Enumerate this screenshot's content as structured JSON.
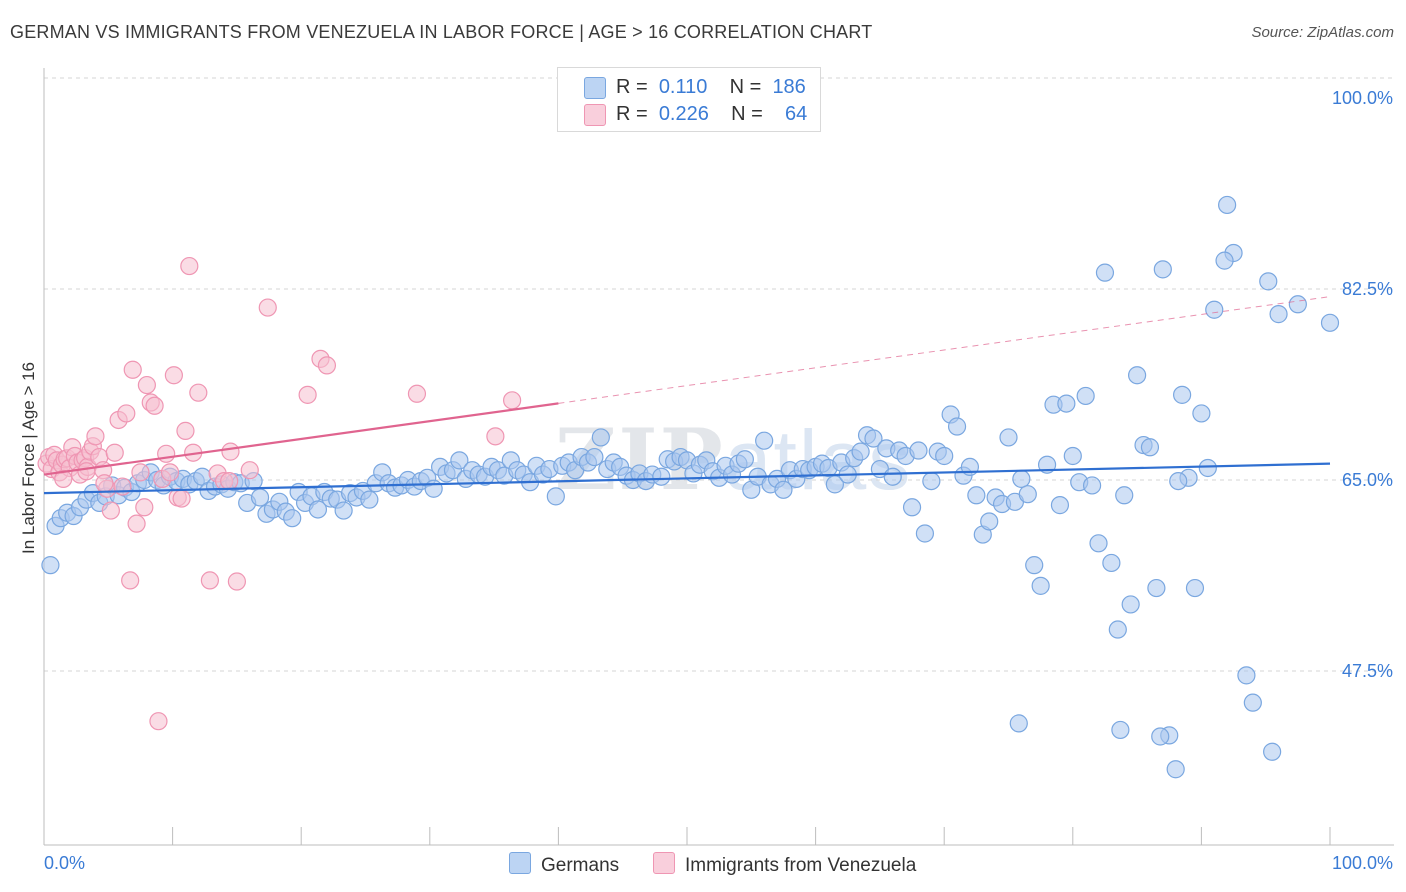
{
  "title": "GERMAN VS IMMIGRANTS FROM VENEZUELA IN LABOR FORCE | AGE > 16 CORRELATION CHART",
  "source": "Source: ZipAtlas.com",
  "watermark": {
    "zip": "ZIP",
    "atlas": "atlas"
  },
  "legend": {
    "series1": {
      "r_label": "R =",
      "r_value": "0.110",
      "n_label": "N =",
      "n_value": "186"
    },
    "series2": {
      "r_label": "R =",
      "r_value": "0.226",
      "n_label": "N =",
      "n_value": "64"
    }
  },
  "bottom_legend": {
    "series1": "Germans",
    "series2": "Immigrants from Venezuela"
  },
  "colors": {
    "blue_fill": "#a9c7ee",
    "blue_stroke": "#7aa7e0",
    "blue_line": "#2f6fd1",
    "pink_fill": "#f6bfd0",
    "pink_stroke": "#ef96b3",
    "pink_line": "#e0648f",
    "axis_text": "#3a7bd5",
    "grid": "#d6d6d6"
  },
  "chart_data": {
    "type": "scatter",
    "title": "GERMAN VS IMMIGRANTS FROM VENEZUELA IN LABOR FORCE | AGE > 16 CORRELATION CHART",
    "xlabel": "",
    "ylabel": "In Labor Force | Age > 16",
    "xlim": [
      0,
      100
    ],
    "ylim": [
      30,
      102
    ],
    "x_tick_labels": [
      "0.0%",
      "100.0%"
    ],
    "y_ticks": [
      47.5,
      65.0,
      82.5,
      100.0
    ],
    "y_tick_labels": [
      "47.5%",
      "65.0%",
      "82.5%",
      "100.0%"
    ],
    "grid": true,
    "legend_position": "top-center",
    "series": [
      {
        "name": "Germans",
        "trend": {
          "x": [
            0,
            100
          ],
          "y": [
            63.8,
            66.5
          ],
          "solid_until": 100
        },
        "points": [
          [
            0.5,
            57.2
          ],
          [
            0.9,
            60.8
          ],
          [
            1.3,
            61.5
          ],
          [
            1.8,
            62.0
          ],
          [
            2.3,
            61.7
          ],
          [
            2.8,
            62.5
          ],
          [
            3.3,
            63.2
          ],
          [
            3.8,
            63.8
          ],
          [
            4.3,
            62.9
          ],
          [
            4.8,
            63.5
          ],
          [
            5.3,
            64.5
          ],
          [
            5.8,
            63.6
          ],
          [
            6.3,
            64.3
          ],
          [
            6.8,
            63.9
          ],
          [
            7.3,
            64.7
          ],
          [
            7.8,
            65.0
          ],
          [
            8.3,
            65.7
          ],
          [
            8.8,
            65.0
          ],
          [
            9.3,
            64.5
          ],
          [
            9.8,
            65.3
          ],
          [
            10.3,
            64.9
          ],
          [
            10.8,
            65.1
          ],
          [
            11.3,
            64.6
          ],
          [
            11.8,
            64.9
          ],
          [
            12.3,
            65.3
          ],
          [
            12.8,
            64.0
          ],
          [
            13.3,
            64.4
          ],
          [
            13.8,
            64.6
          ],
          [
            14.3,
            64.2
          ],
          [
            14.8,
            64.8
          ],
          [
            15.3,
            64.7
          ],
          [
            15.8,
            62.9
          ],
          [
            16.3,
            64.9
          ],
          [
            16.8,
            63.4
          ],
          [
            17.3,
            61.9
          ],
          [
            17.8,
            62.3
          ],
          [
            18.3,
            63.0
          ],
          [
            18.8,
            62.1
          ],
          [
            19.3,
            61.5
          ],
          [
            19.8,
            63.9
          ],
          [
            20.3,
            62.9
          ],
          [
            20.8,
            63.5
          ],
          [
            21.3,
            62.3
          ],
          [
            21.8,
            63.9
          ],
          [
            22.3,
            63.3
          ],
          [
            22.8,
            63.2
          ],
          [
            23.3,
            62.2
          ],
          [
            23.8,
            63.8
          ],
          [
            24.3,
            63.4
          ],
          [
            24.8,
            64.0
          ],
          [
            25.3,
            63.2
          ],
          [
            25.8,
            64.7
          ],
          [
            26.3,
            65.7
          ],
          [
            26.8,
            64.7
          ],
          [
            27.3,
            64.3
          ],
          [
            27.8,
            64.5
          ],
          [
            28.3,
            65.0
          ],
          [
            28.8,
            64.4
          ],
          [
            29.3,
            64.9
          ],
          [
            29.8,
            65.2
          ],
          [
            30.3,
            64.2
          ],
          [
            30.8,
            66.2
          ],
          [
            31.3,
            65.6
          ],
          [
            31.8,
            65.9
          ],
          [
            32.3,
            66.8
          ],
          [
            32.8,
            65.1
          ],
          [
            33.3,
            65.9
          ],
          [
            33.8,
            65.5
          ],
          [
            34.3,
            65.3
          ],
          [
            34.8,
            66.2
          ],
          [
            35.3,
            65.9
          ],
          [
            35.8,
            65.4
          ],
          [
            36.3,
            66.8
          ],
          [
            36.8,
            65.9
          ],
          [
            37.3,
            65.5
          ],
          [
            37.8,
            64.8
          ],
          [
            38.3,
            66.3
          ],
          [
            38.8,
            65.5
          ],
          [
            39.3,
            66.0
          ],
          [
            39.8,
            63.5
          ],
          [
            40.3,
            66.3
          ],
          [
            40.8,
            66.6
          ],
          [
            41.3,
            65.9
          ],
          [
            41.8,
            67.1
          ],
          [
            42.3,
            66.6
          ],
          [
            42.8,
            67.1
          ],
          [
            43.3,
            68.9
          ],
          [
            43.8,
            66.0
          ],
          [
            44.3,
            66.6
          ],
          [
            44.8,
            66.2
          ],
          [
            45.3,
            65.4
          ],
          [
            45.8,
            65.0
          ],
          [
            46.3,
            65.6
          ],
          [
            46.8,
            64.9
          ],
          [
            47.3,
            65.5
          ],
          [
            48.0,
            65.3
          ],
          [
            48.5,
            66.9
          ],
          [
            49.0,
            66.7
          ],
          [
            49.5,
            67.1
          ],
          [
            50.0,
            66.8
          ],
          [
            50.5,
            65.6
          ],
          [
            51.0,
            66.4
          ],
          [
            51.5,
            66.8
          ],
          [
            52.0,
            65.8
          ],
          [
            52.5,
            65.2
          ],
          [
            53.0,
            66.3
          ],
          [
            53.5,
            65.5
          ],
          [
            54.0,
            66.5
          ],
          [
            54.5,
            66.9
          ],
          [
            55.0,
            64.1
          ],
          [
            55.5,
            65.3
          ],
          [
            56.0,
            68.6
          ],
          [
            56.5,
            64.6
          ],
          [
            57.0,
            65.1
          ],
          [
            57.5,
            64.1
          ],
          [
            58.0,
            65.9
          ],
          [
            58.5,
            65.1
          ],
          [
            59.0,
            66.0
          ],
          [
            59.5,
            65.9
          ],
          [
            60.0,
            66.2
          ],
          [
            60.5,
            66.5
          ],
          [
            61.0,
            66.1
          ],
          [
            61.5,
            64.6
          ],
          [
            62.0,
            66.6
          ],
          [
            62.5,
            65.5
          ],
          [
            63.0,
            67.0
          ],
          [
            63.5,
            67.6
          ],
          [
            64.0,
            69.1
          ],
          [
            64.5,
            68.8
          ],
          [
            65.0,
            66.0
          ],
          [
            65.5,
            67.9
          ],
          [
            66.0,
            65.3
          ],
          [
            66.5,
            67.7
          ],
          [
            67.0,
            67.2
          ],
          [
            67.5,
            62.5
          ],
          [
            68.0,
            67.7
          ],
          [
            68.5,
            60.1
          ],
          [
            69.0,
            64.9
          ],
          [
            69.5,
            67.6
          ],
          [
            70.0,
            67.2
          ],
          [
            70.5,
            71.0
          ],
          [
            71.0,
            69.9
          ],
          [
            71.5,
            65.4
          ],
          [
            72.0,
            66.2
          ],
          [
            72.5,
            63.6
          ],
          [
            73.0,
            60.0
          ],
          [
            73.5,
            61.2
          ],
          [
            74.0,
            63.4
          ],
          [
            74.5,
            62.8
          ],
          [
            75.0,
            68.9
          ],
          [
            75.5,
            63.0
          ],
          [
            76.0,
            65.1
          ],
          [
            76.5,
            63.7
          ],
          [
            77.0,
            57.2
          ],
          [
            77.5,
            55.3
          ],
          [
            78.0,
            66.4
          ],
          [
            78.5,
            71.9
          ],
          [
            79.0,
            62.7
          ],
          [
            79.5,
            72.0
          ],
          [
            80.0,
            67.2
          ],
          [
            80.5,
            64.8
          ],
          [
            81.0,
            72.7
          ],
          [
            81.5,
            64.5
          ],
          [
            82.0,
            59.2
          ],
          [
            82.5,
            84.0
          ],
          [
            83.0,
            57.4
          ],
          [
            83.5,
            51.3
          ],
          [
            84.0,
            63.6
          ],
          [
            84.5,
            53.6
          ],
          [
            85.0,
            74.6
          ],
          [
            85.5,
            68.2
          ],
          [
            86.0,
            68.0
          ],
          [
            86.5,
            55.1
          ],
          [
            87.0,
            84.3
          ],
          [
            87.5,
            41.6
          ],
          [
            88.0,
            38.5
          ],
          [
            88.5,
            72.8
          ],
          [
            89.0,
            65.2
          ],
          [
            89.5,
            55.1
          ],
          [
            90.0,
            71.1
          ],
          [
            90.5,
            66.1
          ],
          [
            91.0,
            80.6
          ],
          [
            92.0,
            90.2
          ],
          [
            92.5,
            85.8
          ],
          [
            93.5,
            47.1
          ],
          [
            94.0,
            44.6
          ],
          [
            95.5,
            40.1
          ],
          [
            96.0,
            80.2
          ],
          [
            97.5,
            81.1
          ],
          [
            100.0,
            79.4
          ],
          [
            75.8,
            42.7
          ],
          [
            83.7,
            42.1
          ],
          [
            86.8,
            41.5
          ],
          [
            88.2,
            64.9
          ],
          [
            91.8,
            85.1
          ],
          [
            95.2,
            83.2
          ]
        ]
      },
      {
        "name": "Immigrants from Venezuela",
        "trend": {
          "x": [
            0,
            100
          ],
          "y": [
            65.5,
            81.8
          ],
          "solid_until": 40
        },
        "points": [
          [
            0.2,
            66.5
          ],
          [
            0.4,
            67.1
          ],
          [
            0.6,
            66.0
          ],
          [
            0.8,
            67.3
          ],
          [
            1.0,
            66.8
          ],
          [
            1.2,
            65.7
          ],
          [
            1.4,
            66.4
          ],
          [
            1.6,
            66.9
          ],
          [
            1.8,
            67.0
          ],
          [
            2.0,
            66.1
          ],
          [
            2.2,
            68.0
          ],
          [
            2.4,
            67.2
          ],
          [
            2.6,
            66.6
          ],
          [
            2.8,
            65.5
          ],
          [
            3.0,
            66.8
          ],
          [
            3.2,
            67.0
          ],
          [
            3.4,
            66.2
          ],
          [
            3.6,
            67.6
          ],
          [
            3.8,
            68.1
          ],
          [
            4.0,
            69.0
          ],
          [
            4.3,
            67.1
          ],
          [
            4.6,
            65.9
          ],
          [
            4.9,
            64.2
          ],
          [
            5.2,
            62.2
          ],
          [
            5.5,
            67.5
          ],
          [
            5.8,
            70.5
          ],
          [
            6.1,
            64.4
          ],
          [
            6.4,
            71.1
          ],
          [
            6.7,
            55.8
          ],
          [
            6.9,
            75.1
          ],
          [
            7.2,
            61.0
          ],
          [
            7.5,
            65.7
          ],
          [
            7.8,
            62.5
          ],
          [
            8.0,
            73.7
          ],
          [
            8.3,
            72.1
          ],
          [
            8.6,
            71.8
          ],
          [
            8.9,
            42.9
          ],
          [
            9.2,
            65.1
          ],
          [
            9.5,
            67.4
          ],
          [
            9.8,
            65.7
          ],
          [
            10.1,
            74.6
          ],
          [
            10.4,
            63.4
          ],
          [
            10.7,
            63.3
          ],
          [
            11.0,
            69.5
          ],
          [
            11.3,
            84.6
          ],
          [
            11.6,
            67.5
          ],
          [
            12.0,
            73.0
          ],
          [
            12.9,
            55.8
          ],
          [
            13.5,
            65.6
          ],
          [
            14.0,
            64.9
          ],
          [
            14.5,
            67.6
          ],
          [
            15.0,
            55.7
          ],
          [
            16.0,
            65.9
          ],
          [
            17.4,
            80.8
          ],
          [
            20.5,
            72.8
          ],
          [
            21.5,
            76.1
          ],
          [
            22.0,
            75.5
          ],
          [
            29.0,
            72.9
          ],
          [
            35.1,
            69.0
          ],
          [
            36.4,
            72.3
          ],
          [
            1.5,
            65.1
          ],
          [
            3.3,
            65.8
          ],
          [
            4.7,
            64.7
          ],
          [
            14.4,
            64.9
          ]
        ]
      }
    ]
  }
}
